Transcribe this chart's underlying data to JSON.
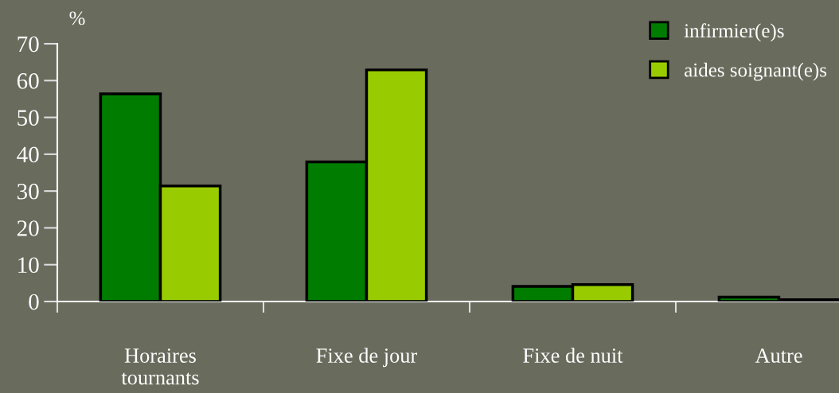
{
  "chart_data": {
    "type": "bar",
    "ylabel": "%",
    "categories": [
      "Horaires\ntournants",
      "Fixe de jour",
      "Fixe de nuit",
      "Autre"
    ],
    "series": [
      {
        "name": "infirmier(e)s",
        "color": "#007d00",
        "values": [
          56.4,
          37.9,
          4.1,
          1.2
        ]
      },
      {
        "name": "aides soignant(e)s",
        "color": "#99cc00",
        "values": [
          31.4,
          62.9,
          4.6,
          0.5
        ]
      }
    ],
    "ylim": [
      0,
      70
    ],
    "yticks": [
      0,
      10,
      20,
      30,
      40,
      50,
      60,
      70
    ],
    "grid": false,
    "legend": "top right"
  }
}
